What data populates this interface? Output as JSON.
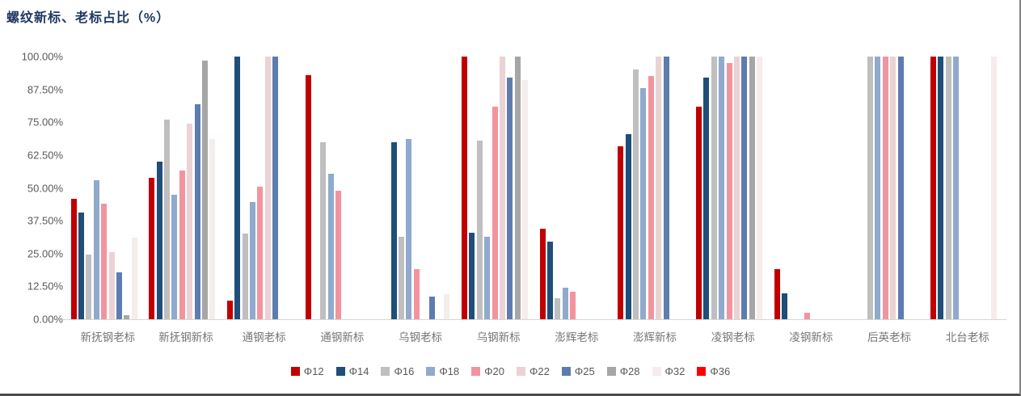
{
  "page": {
    "title": "螺纹新标、老标占比（%）"
  },
  "chart_data": {
    "type": "bar",
    "title": "螺纹新标、老标占比（%）",
    "xlabel": "",
    "ylabel": "",
    "ylim": [
      0,
      100
    ],
    "ytick_labels_top_to_bottom": [
      "100.00%",
      "87.50%",
      "75.00%",
      "62.50%",
      "50.00%",
      "37.50%",
      "25.00%",
      "12.50%",
      "0.00%"
    ],
    "grid": false,
    "legend_position": "bottom",
    "categories": [
      "新抚钢老标",
      "新抚钢新标",
      "通钢老标",
      "通钢新标",
      "乌钢老标",
      "乌钢新标",
      "澎辉老标",
      "澎辉新标",
      "凌钢老标",
      "凌钢新标",
      "后英老标",
      "北台老标"
    ],
    "series": [
      {
        "name": "Φ12",
        "color": "#C00000",
        "values": [
          46,
          54,
          7,
          93,
          0,
          100,
          34.5,
          66,
          81,
          19,
          0,
          100
        ]
      },
      {
        "name": "Φ14",
        "color": "#1F4E79",
        "values": [
          40.5,
          60,
          100,
          0,
          67.5,
          33,
          29.5,
          70.5,
          92,
          10,
          0,
          100
        ]
      },
      {
        "name": "Φ16",
        "color": "#BFBFBF",
        "values": [
          24.5,
          76,
          32.5,
          67.5,
          31.5,
          68,
          8,
          95,
          100,
          0,
          100,
          100
        ]
      },
      {
        "name": "Φ18",
        "color": "#8FAACC",
        "values": [
          53,
          47.5,
          44.5,
          55.5,
          68.5,
          31.5,
          12,
          88,
          100,
          0,
          100,
          100
        ]
      },
      {
        "name": "Φ20",
        "color": "#F2949E",
        "values": [
          44,
          56.5,
          50.5,
          49,
          19,
          81,
          10.5,
          92.5,
          97.5,
          2.5,
          100,
          0
        ]
      },
      {
        "name": "Φ22",
        "color": "#EBD2D4",
        "values": [
          25.5,
          74.5,
          100,
          0,
          0,
          100,
          0,
          100,
          100,
          0,
          100,
          0
        ]
      },
      {
        "name": "Φ25",
        "color": "#5D7CAF",
        "values": [
          18,
          82,
          100,
          0,
          8.5,
          92,
          0,
          100,
          100,
          0,
          100,
          0
        ]
      },
      {
        "name": "Φ28",
        "color": "#A6A6A6",
        "values": [
          1.5,
          98.5,
          0,
          0,
          0,
          100,
          0,
          0,
          100,
          0,
          0,
          0
        ]
      },
      {
        "name": "Φ32",
        "color": "#F5ECEB",
        "values": [
          31,
          68.5,
          0,
          0,
          9.5,
          91,
          0,
          0,
          100,
          0,
          0,
          100
        ]
      },
      {
        "name": "Φ36",
        "color": "#FF0000",
        "values": [
          0,
          0,
          0,
          0,
          0,
          0,
          0,
          0,
          0,
          0,
          0,
          0
        ]
      }
    ],
    "colors": {
      "title_text": "#1F3864",
      "axis_text": "#595959",
      "category_text": "#757575",
      "axis_line": "#D6D6D6",
      "border_bottom": "#4d4d4d",
      "border_right": "#808080"
    }
  }
}
